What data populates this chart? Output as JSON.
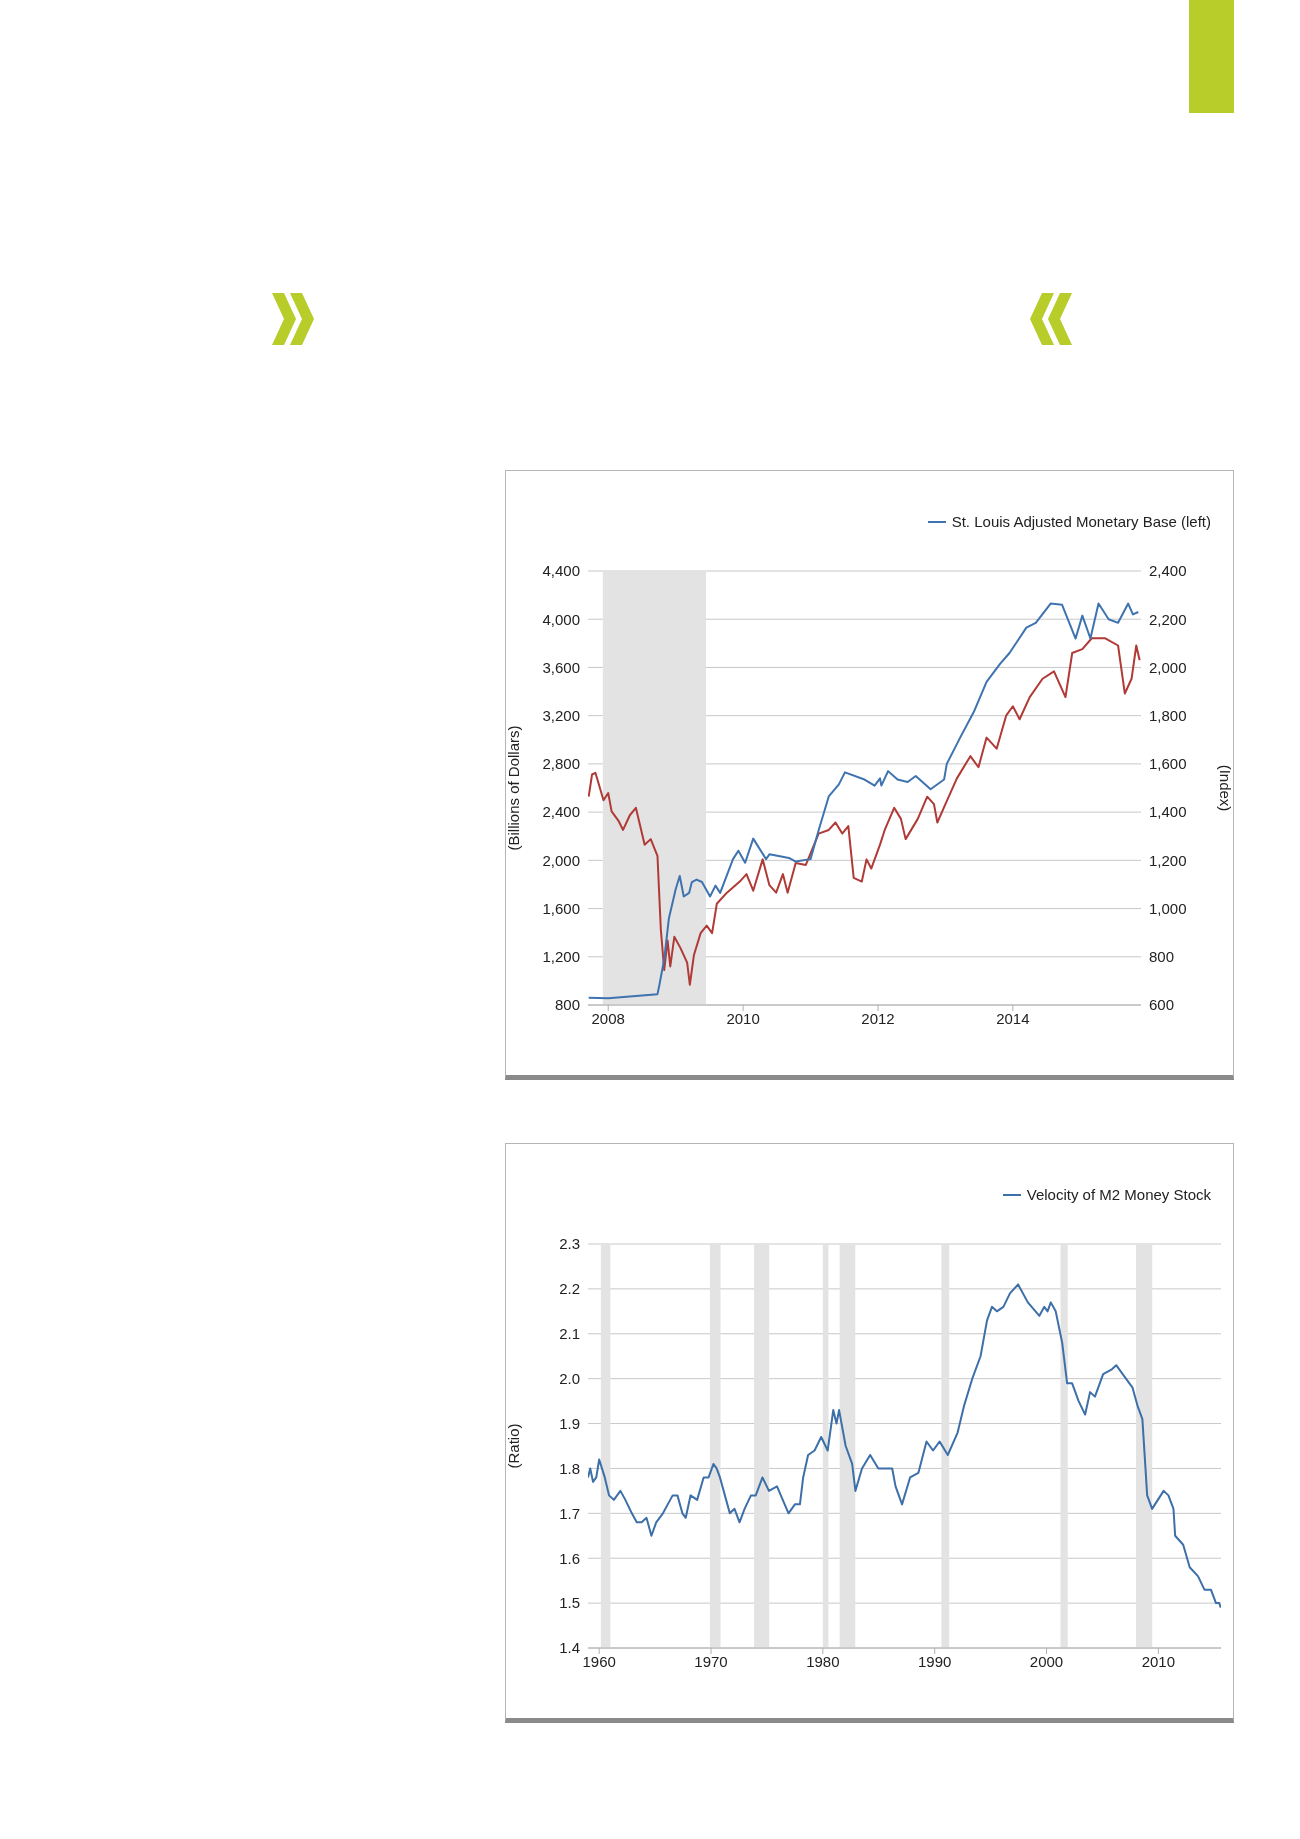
{
  "chart_data": [
    {
      "type": "line",
      "ylabel": "(Billions of Dollars)",
      "y2label": "(Index)",
      "xlim": [
        2007.7,
        2015.9
      ],
      "xticks": [
        2008,
        2010,
        2012,
        2014
      ],
      "ylim": [
        800,
        4400
      ],
      "yticks": [
        800,
        {
          "value": 1200,
          "label": "1,200"
        },
        {
          "value": 1600,
          "label": "1,600"
        },
        {
          "value": 2000,
          "label": "2,000"
        },
        {
          "value": 2400,
          "label": "2,400"
        },
        {
          "value": 2800,
          "label": "2,800"
        },
        {
          "value": 3200,
          "label": "3,200"
        },
        {
          "value": 3600,
          "label": "3,600"
        },
        {
          "value": 4000,
          "label": "4,000"
        },
        {
          "value": 4400,
          "label": "4,400"
        }
      ],
      "y2lim": [
        600,
        2400
      ],
      "y2ticks": [
        600,
        800,
        {
          "value": 1000,
          "label": "1,000"
        },
        {
          "value": 1200,
          "label": "1,200"
        },
        {
          "value": 1400,
          "label": "1,400"
        },
        {
          "value": 1600,
          "label": "1,600"
        },
        {
          "value": 1800,
          "label": "1,800"
        },
        {
          "value": 2000,
          "label": "2,000"
        },
        {
          "value": 2200,
          "label": "2,200"
        },
        {
          "value": 2400,
          "label": "2,400"
        }
      ],
      "grid": "y",
      "legend": "top right",
      "bands": [
        {
          "axis": "x",
          "from": 2007.92,
          "to": 2009.45,
          "color": "#e3e3e3"
        }
      ],
      "series": [
        {
          "color": "#b03a36",
          "axis": "y2",
          "x": [
            2007.71,
            2007.76,
            2007.81,
            2007.93,
            2008.0,
            2008.05,
            2008.15,
            2008.22,
            2008.32,
            2008.41,
            2008.54,
            2008.63,
            2008.73,
            2008.78,
            2008.83,
            2008.88,
            2008.92,
            2008.98,
            2009.07,
            2009.17,
            2009.21,
            2009.27,
            2009.37,
            2009.46,
            2009.54,
            2009.61,
            2009.76,
            2009.95,
            2010.05,
            2010.15,
            2010.29,
            2010.39,
            2010.49,
            2010.59,
            2010.66,
            2010.78,
            2010.93,
            2011.12,
            2011.27,
            2011.37,
            2011.47,
            2011.56,
            2011.64,
            2011.76,
            2011.83,
            2011.9,
            2012.03,
            2012.1,
            2012.24,
            2012.34,
            2012.41,
            2012.59,
            2012.73,
            2012.83,
            2012.88,
            2013.0,
            2013.17,
            2013.37,
            2013.49,
            2013.61,
            2013.76,
            2013.9,
            2014.0,
            2014.1,
            2014.25,
            2014.44,
            2014.61,
            2014.78,
            2014.88,
            2015.03,
            2015.17,
            2015.37,
            2015.56,
            2015.66,
            2015.76,
            2015.83,
            2015.88
          ],
          "values": [
            1464,
            1556,
            1563,
            1449,
            1479,
            1403,
            1365,
            1326,
            1387,
            1418,
            1265,
            1288,
            1219,
            913,
            745,
            868,
            760,
            883,
            837,
            776,
            684,
            806,
            898,
            929,
            898,
            1020,
            1066,
            1112,
            1143,
            1074,
            1204,
            1097,
            1066,
            1143,
            1066,
            1189,
            1181,
            1311,
            1326,
            1357,
            1311,
            1342,
            1127,
            1112,
            1204,
            1166,
            1265,
            1326,
            1418,
            1372,
            1288,
            1372,
            1464,
            1433,
            1357,
            1433,
            1540,
            1632,
            1586,
            1709,
            1663,
            1800,
            1839,
            1785,
            1877,
            1953,
            1984,
            1877,
            2060,
            2076,
            2121,
            2121,
            2091,
            1892,
            1953,
            2091,
            2030
          ]
        },
        {
          "name": "St. Louis Adjusted Monetary Base (left)",
          "color": "#3f73b0",
          "x": [
            2007.71,
            2008.0,
            2008.73,
            2008.76,
            2008.83,
            2008.9,
            2009.0,
            2009.06,
            2009.12,
            2009.2,
            2009.24,
            2009.31,
            2009.39,
            2009.51,
            2009.59,
            2009.66,
            2009.85,
            2009.93,
            2010.03,
            2010.15,
            2010.34,
            2010.39,
            2010.68,
            2010.78,
            2011.0,
            2011.12,
            2011.27,
            2011.42,
            2011.51,
            2011.8,
            2011.95,
            2012.03,
            2012.05,
            2012.15,
            2012.29,
            2012.44,
            2012.56,
            2012.78,
            2012.98,
            2013.02,
            2013.22,
            2013.42,
            2013.61,
            2013.81,
            2013.95,
            2014.2,
            2014.34,
            2014.56,
            2014.73,
            2014.93,
            2015.03,
            2015.15,
            2015.27,
            2015.42,
            2015.56,
            2015.71,
            2015.78,
            2015.86
          ],
          "values": [
            860,
            855,
            890,
            970,
            1180,
            1520,
            1760,
            1870,
            1700,
            1730,
            1820,
            1840,
            1820,
            1700,
            1790,
            1730,
            2010,
            2080,
            1980,
            2180,
            2010,
            2050,
            2020,
            1990,
            2010,
            2250,
            2530,
            2630,
            2730,
            2670,
            2620,
            2680,
            2620,
            2740,
            2670,
            2650,
            2700,
            2590,
            2670,
            2800,
            3020,
            3230,
            3480,
            3630,
            3720,
            3930,
            3970,
            4130,
            4120,
            3840,
            4030,
            3840,
            4130,
            4000,
            3970,
            4130,
            4040,
            4060
          ]
        }
      ]
    },
    {
      "type": "line",
      "ylabel": "(Ratio)",
      "xlim": [
        1959,
        2015.6
      ],
      "xticks": [
        1960,
        1970,
        1980,
        1990,
        2000,
        2010
      ],
      "ylim": [
        1.4,
        2.3
      ],
      "yticks": [
        1.4,
        1.5,
        1.6,
        1.7,
        1.8,
        1.9,
        {
          "value": 2,
          "label": "2.0"
        },
        2.1,
        2.2,
        2.3
      ],
      "grid": "y",
      "legend": "top right",
      "bands": [
        {
          "axis": "x",
          "from": 1960.15,
          "to": 1961.0,
          "color": "#e3e3e3"
        },
        {
          "axis": "x",
          "from": 1969.9,
          "to": 1970.85,
          "color": "#e3e3e3"
        },
        {
          "axis": "x",
          "from": 1973.85,
          "to": 1975.2,
          "color": "#e3e3e3"
        },
        {
          "axis": "x",
          "from": 1980.0,
          "to": 1980.5,
          "color": "#e3e3e3"
        },
        {
          "axis": "x",
          "from": 1981.5,
          "to": 1982.9,
          "color": "#e3e3e3"
        },
        {
          "axis": "x",
          "from": 1990.6,
          "to": 1991.3,
          "color": "#e3e3e3"
        },
        {
          "axis": "x",
          "from": 2001.25,
          "to": 2001.9,
          "color": "#e3e3e3"
        },
        {
          "axis": "x",
          "from": 2008.0,
          "to": 2009.45,
          "color": "#e3e3e3"
        }
      ],
      "series": [
        {
          "name": "Velocity of M2 Money Stock",
          "color": "#3d6fa8",
          "x": [
            1959.0,
            1959.2,
            1959.45,
            1959.74,
            1960.0,
            1960.5,
            1960.88,
            1961.31,
            1961.9,
            1962.34,
            1962.92,
            1963.36,
            1963.8,
            1964.23,
            1964.67,
            1965.1,
            1965.7,
            1966.13,
            1966.57,
            1967.0,
            1967.44,
            1967.74,
            1968.17,
            1968.76,
            1969.34,
            1969.78,
            1970.22,
            1970.5,
            1970.8,
            1971.24,
            1971.68,
            1972.1,
            1972.55,
            1973.0,
            1973.57,
            1974.0,
            1974.6,
            1975.18,
            1975.9,
            1976.93,
            1977.5,
            1977.95,
            1978.24,
            1978.68,
            1979.26,
            1979.85,
            1980.43,
            1980.93,
            1981.22,
            1981.45,
            1982.04,
            1982.62,
            1982.91,
            1983.5,
            1984.23,
            1984.96,
            1985.83,
            1986.2,
            1986.5,
            1987.08,
            1987.8,
            1988.54,
            1989.27,
            1989.85,
            1990.44,
            1991.17,
            1992.05,
            1992.63,
            1993.36,
            1994.1,
            1994.68,
            1995.12,
            1995.56,
            1996.14,
            1996.73,
            1997.46,
            1998.33,
            1999.36,
            1999.8,
            2000.09,
            2000.38,
            2000.82,
            2001.4,
            2001.84,
            2002.28,
            2002.87,
            2003.45,
            2003.89,
            2004.33,
            2005.06,
            2005.8,
            2006.23,
            2006.81,
            2007.69,
            2008.13,
            2008.57,
            2009.0,
            2009.44,
            2010.47,
            2010.9,
            2011.35,
            2011.5,
            2012.22,
            2012.8,
            2013.54,
            2014.12,
            2014.7,
            2015.15,
            2015.44,
            2015.58
          ],
          "values": [
            1.78,
            1.8,
            1.77,
            1.78,
            1.82,
            1.78,
            1.74,
            1.73,
            1.75,
            1.73,
            1.7,
            1.68,
            1.68,
            1.69,
            1.65,
            1.68,
            1.7,
            1.72,
            1.74,
            1.74,
            1.7,
            1.69,
            1.74,
            1.73,
            1.78,
            1.78,
            1.81,
            1.8,
            1.78,
            1.74,
            1.7,
            1.71,
            1.68,
            1.71,
            1.74,
            1.74,
            1.78,
            1.75,
            1.76,
            1.7,
            1.72,
            1.72,
            1.78,
            1.83,
            1.84,
            1.87,
            1.84,
            1.93,
            1.9,
            1.93,
            1.85,
            1.81,
            1.75,
            1.8,
            1.83,
            1.8,
            1.8,
            1.8,
            1.76,
            1.72,
            1.78,
            1.79,
            1.86,
            1.84,
            1.86,
            1.83,
            1.88,
            1.94,
            2.0,
            2.05,
            2.13,
            2.16,
            2.15,
            2.16,
            2.19,
            2.21,
            2.17,
            2.14,
            2.16,
            2.15,
            2.17,
            2.15,
            2.08,
            1.99,
            1.99,
            1.95,
            1.92,
            1.97,
            1.96,
            2.01,
            2.02,
            2.03,
            2.01,
            1.98,
            1.94,
            1.91,
            1.74,
            1.71,
            1.75,
            1.74,
            1.71,
            1.65,
            1.63,
            1.58,
            1.56,
            1.53,
            1.53,
            1.5,
            1.5,
            1.49
          ]
        }
      ]
    }
  ]
}
